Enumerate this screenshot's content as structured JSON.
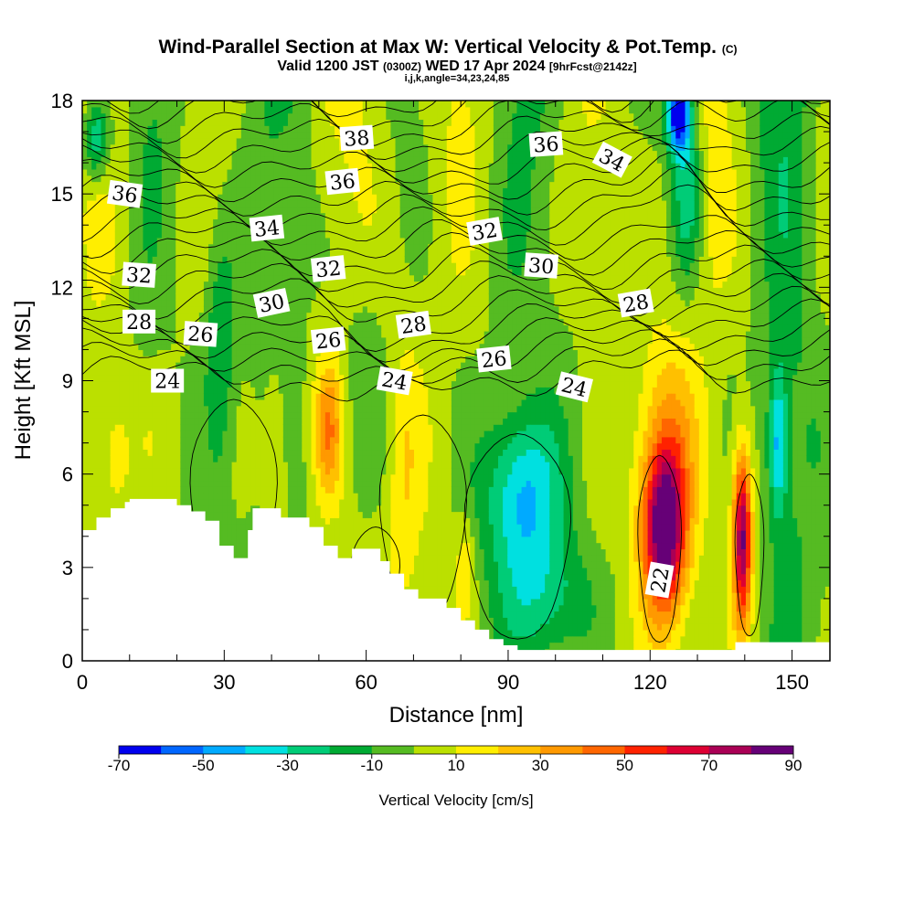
{
  "chart_data": {
    "type": "heatmap",
    "title": "Wind-Parallel Section at Max W: Vertical Velocity & Pot.Temp.",
    "title_mark": "(C)",
    "subtitle_main": "Valid 1200 JST",
    "subtitle_utc": "(0300Z)",
    "subtitle_date": "WED 17 Apr 2024",
    "subtitle_fcst": "[9hrFcst@2142z]",
    "subtitle_line2": "i,j,k,angle=34,23,24,85",
    "xlabel": "Distance [nm]",
    "ylabel": "Height [Kft MSL]",
    "xlim": [
      0,
      158
    ],
    "ylim": [
      0,
      18
    ],
    "x_ticks": [
      0,
      30,
      60,
      90,
      120,
      150
    ],
    "x_tick_labels": [
      "0",
      "30",
      "60",
      "90",
      "120",
      "150"
    ],
    "y_ticks": [
      0,
      3,
      6,
      9,
      12,
      15,
      18
    ],
    "y_tick_labels": [
      "0",
      "3",
      "6",
      "9",
      "12",
      "15",
      "18"
    ],
    "colorbar": {
      "label": "Vertical Velocity [cm/s]",
      "levels": [
        -70,
        -60,
        -50,
        -40,
        -30,
        -20,
        -10,
        0,
        10,
        20,
        30,
        40,
        50,
        60,
        70,
        80,
        90
      ],
      "tick_labels": [
        "-70",
        "-50",
        "-30",
        "-10",
        "10",
        "30",
        "50",
        "70",
        "90"
      ],
      "colors": [
        "#0000ee",
        "#0066ff",
        "#00aaff",
        "#00e0e0",
        "#00cc77",
        "#00aa33",
        "#55bb22",
        "#bbe000",
        "#ffee00",
        "#ffc000",
        "#ff9900",
        "#ff6600",
        "#ff2200",
        "#dd0033",
        "#aa0055",
        "#660077"
      ]
    },
    "terrain": {
      "x": [
        0,
        3,
        6,
        9,
        10,
        17,
        20,
        23,
        26,
        29,
        32,
        35,
        36,
        42,
        45,
        48,
        51,
        54,
        57,
        60,
        63,
        65,
        68,
        71,
        74,
        77,
        80,
        83,
        86,
        89,
        92,
        132,
        138,
        158
      ],
      "h": [
        4.2,
        4.6,
        4.9,
        5.1,
        5.2,
        5.2,
        5.0,
        4.8,
        4.5,
        3.7,
        3.3,
        4.2,
        4.9,
        4.6,
        4.6,
        4.3,
        3.7,
        3.3,
        3.6,
        3.6,
        3.2,
        2.8,
        2.3,
        2.0,
        2.0,
        1.7,
        1.3,
        1.0,
        0.7,
        0.5,
        0.35,
        0.35,
        0.6,
        0.35
      ]
    },
    "updrafts": [
      {
        "x": 123,
        "z": 4.2,
        "sx": 4.5,
        "sz": 2.6,
        "w": 88
      },
      {
        "x": 139.5,
        "z": 4.0,
        "sx": 2.0,
        "sz": 2.8,
        "w": 82
      },
      {
        "x": 124,
        "z": 7.2,
        "sx": 6,
        "sz": 3,
        "w": 22
      },
      {
        "x": 52,
        "z": 7.5,
        "sx": 3.0,
        "sz": 2.2,
        "w": 36
      },
      {
        "x": 41,
        "z": 6.5,
        "sx": 3.0,
        "sz": 3,
        "w": 12
      },
      {
        "x": 68,
        "z": 6.0,
        "sx": 3.0,
        "sz": 4,
        "w": 12
      },
      {
        "x": 7,
        "z": 6.6,
        "sx": 2.5,
        "sz": 1.4,
        "w": 14
      },
      {
        "x": 81,
        "z": 3.0,
        "sx": 2,
        "sz": 1.5,
        "w": 18
      },
      {
        "x": 130,
        "z": 14.5,
        "sx": 5,
        "sz": 3,
        "w": 10
      }
    ],
    "downdrafts": [
      {
        "x": 93,
        "z": 5.3,
        "sx": 8,
        "sz": 2.6,
        "w": -40
      },
      {
        "x": 98,
        "z": 2.0,
        "sx": 10,
        "sz": 2,
        "w": -22
      },
      {
        "x": 126,
        "z": 17.6,
        "sx": 2.5,
        "sz": 1.2,
        "w": -72
      },
      {
        "x": 128,
        "z": 15.0,
        "sx": 3.5,
        "sz": 3,
        "w": -38
      },
      {
        "x": 3,
        "z": 16.8,
        "sx": 3,
        "sz": 1.4,
        "w": -40
      },
      {
        "x": 147,
        "z": 7.0,
        "sx": 2,
        "sz": 2.5,
        "w": -40
      },
      {
        "x": 29,
        "z": 10,
        "sx": 3,
        "sz": 4,
        "w": -20
      },
      {
        "x": 60,
        "z": 9,
        "sx": 5,
        "sz": 4,
        "w": -12
      }
    ],
    "theta_label_positions": [
      {
        "text": "38",
        "x": 58,
        "z": 16.8,
        "rot": -4
      },
      {
        "text": "36",
        "x": 98,
        "z": 16.6,
        "rot": -4
      },
      {
        "text": "34",
        "x": 112,
        "z": 16.1,
        "rot": 28
      },
      {
        "text": "36",
        "x": 55,
        "z": 15.4,
        "rot": -6
      },
      {
        "text": "36",
        "x": 9,
        "z": 15.0,
        "rot": 8
      },
      {
        "text": "34",
        "x": 39,
        "z": 13.9,
        "rot": -6
      },
      {
        "text": "32",
        "x": 85,
        "z": 13.8,
        "rot": -10
      },
      {
        "text": "32",
        "x": 12,
        "z": 12.4,
        "rot": 4
      },
      {
        "text": "32",
        "x": 52,
        "z": 12.6,
        "rot": -6
      },
      {
        "text": "30",
        "x": 97,
        "z": 12.7,
        "rot": 4
      },
      {
        "text": "30",
        "x": 40,
        "z": 11.5,
        "rot": -12
      },
      {
        "text": "28",
        "x": 117,
        "z": 11.5,
        "rot": -10
      },
      {
        "text": "28",
        "x": 12,
        "z": 10.9,
        "rot": 0
      },
      {
        "text": "26",
        "x": 25,
        "z": 10.5,
        "rot": 4
      },
      {
        "text": "26",
        "x": 52,
        "z": 10.3,
        "rot": -6
      },
      {
        "text": "28",
        "x": 70,
        "z": 10.8,
        "rot": -8
      },
      {
        "text": "26",
        "x": 87,
        "z": 9.7,
        "rot": -6
      },
      {
        "text": "24",
        "x": 18,
        "z": 9.0,
        "rot": 0
      },
      {
        "text": "24",
        "x": 66,
        "z": 9.0,
        "rot": 10
      },
      {
        "text": "24",
        "x": 104,
        "z": 8.8,
        "rot": 14
      },
      {
        "text": "22",
        "x": 122,
        "z": 2.6,
        "rot": -80
      }
    ]
  }
}
